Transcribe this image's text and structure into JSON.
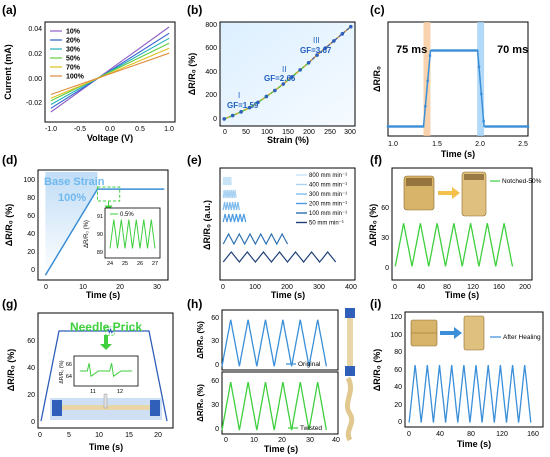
{
  "panels": {
    "a": {
      "letter": "(a)",
      "xlabel": "Voltage (V)",
      "ylabel": "Current (mA)",
      "xticks": [
        "-1.0",
        "-0.5",
        "0.0",
        "0.5",
        "1.0"
      ],
      "yticks": [
        "-0.02",
        "0.00",
        "0.02",
        "0.04"
      ]
    },
    "b": {
      "letter": "(b)",
      "xlabel": "Strain (%)",
      "ylabel": "ΔR/R₀ (%)",
      "xticks": [
        "0",
        "50",
        "100",
        "150",
        "200",
        "250",
        "300"
      ],
      "yticks": [
        "0",
        "200",
        "400",
        "600",
        "800"
      ],
      "annotations": [
        "GF=1.59",
        "GF=2.66",
        "GF=3.67",
        "I",
        "II",
        "III"
      ]
    },
    "c": {
      "letter": "(c)",
      "xlabel": "Time (s)",
      "ylabel": "ΔR/R₀",
      "xticks": [
        "1.0",
        "1.5",
        "2.0",
        "2.5"
      ],
      "annotations": [
        "75 ms",
        "70 ms"
      ]
    },
    "d": {
      "letter": "(d)",
      "xlabel": "Time (s)",
      "ylabel": "ΔR/R₀ (%)",
      "xticks": [
        "0",
        "10",
        "20",
        "30"
      ],
      "yticks": [
        "0",
        "20",
        "40",
        "60",
        "80",
        "100"
      ],
      "annotations": [
        "Base Strain",
        "100%"
      ],
      "inset": {
        "xticks": [
          "24",
          "25",
          "26",
          "27"
        ],
        "yticks": [
          "89",
          "90",
          "91"
        ],
        "ylabel": "ΔR/R₀ (%)",
        "legend": "0.5%"
      }
    },
    "e": {
      "letter": "(e)",
      "xlabel": "Time (s)",
      "ylabel": "ΔR/R₀ (a.u.)",
      "xticks": [
        "0",
        "100",
        "200",
        "300",
        "400"
      ],
      "legend": [
        "800 mm min⁻¹",
        "400 mm min⁻¹",
        "300 mm min⁻¹",
        "200 mm min⁻¹",
        "100 mm min⁻¹",
        "50 mm min⁻¹"
      ]
    },
    "f": {
      "letter": "(f)",
      "xlabel": "Time (s)",
      "ylabel": "ΔR/R₀ (%)",
      "xticks": [
        "0",
        "40",
        "80",
        "120",
        "160",
        "200"
      ],
      "yticks": [
        "0",
        "30",
        "60"
      ],
      "legend": "Notched-50%"
    },
    "g": {
      "letter": "(g)",
      "xlabel": "Time (s)",
      "ylabel": "ΔR/R₀ (%)",
      "xticks": [
        "0",
        "5",
        "10",
        "15",
        "20"
      ],
      "yticks": [
        "0",
        "20",
        "40",
        "60"
      ],
      "annotations": [
        "Needle Prick"
      ],
      "inset": {
        "xticks": [
          "11",
          "12"
        ],
        "yticks": [
          "64",
          "66"
        ],
        "ylabel": "ΔR/R₀ (%)"
      }
    },
    "h": {
      "letter": "(h)",
      "xlabel": "Time (s)",
      "top_ylabel": "ΔR/R₀ (%)",
      "bottom_ylabel": "ΔR/R₀ (%)",
      "xticks": [
        "0",
        "10",
        "20",
        "30",
        "40"
      ],
      "top_yticks": [
        "0",
        "30",
        "60"
      ],
      "bottom_yticks": [
        "0",
        "30",
        "60"
      ],
      "legend_top": "Original",
      "legend_bottom": "Twisted"
    },
    "i": {
      "letter": "(i)",
      "xlabel": "Time (s)",
      "ylabel": "ΔR/R₀ (%)",
      "xticks": [
        "0",
        "40",
        "80",
        "120",
        "160"
      ],
      "yticks": [
        "0",
        "20",
        "40",
        "60",
        "80",
        "100",
        "120"
      ],
      "legend": "After Healing"
    }
  },
  "colors": {
    "blue": "#3a8fd8",
    "green": "#3fcf3f",
    "darkblue": "#1f3f7a"
  },
  "chart_data": [
    {
      "panel": "a",
      "type": "line",
      "xlim": [
        -1.1,
        1.1
      ],
      "ylim": [
        -0.035,
        0.045
      ],
      "series": [
        {
          "name": "10%",
          "color": "#8e5fc7",
          "x": [
            -1,
            1
          ],
          "y": [
            -0.027,
            0.041
          ]
        },
        {
          "name": "20%",
          "color": "#2f5fcf",
          "x": [
            -1,
            1
          ],
          "y": [
            -0.024,
            0.036
          ]
        },
        {
          "name": "30%",
          "color": "#1fb0b8",
          "x": [
            -1,
            1
          ],
          "y": [
            -0.021,
            0.032
          ]
        },
        {
          "name": "50%",
          "color": "#5fcf3f",
          "x": [
            -1,
            1
          ],
          "y": [
            -0.018,
            0.028
          ]
        },
        {
          "name": "70%",
          "color": "#e0c020",
          "x": [
            -1,
            1
          ],
          "y": [
            -0.016,
            0.024
          ]
        },
        {
          "name": "100%",
          "color": "#e08a3a",
          "x": [
            -1,
            1
          ],
          "y": [
            -0.013,
            0.02
          ]
        }
      ]
    },
    {
      "panel": "b",
      "type": "line",
      "xlim": [
        -10,
        310
      ],
      "ylim": [
        -60,
        820
      ],
      "series": [
        {
          "name": "",
          "x": [
            0,
            20,
            40,
            60,
            80,
            100,
            120,
            140,
            160,
            180,
            200,
            220,
            240,
            260,
            280,
            300
          ],
          "y": [
            0,
            28,
            60,
            95,
            140,
            190,
            240,
            295,
            355,
            415,
            475,
            540,
            600,
            660,
            720,
            780
          ]
        }
      ]
    },
    {
      "panel": "c",
      "type": "line",
      "xlim": [
        1.0,
        2.5
      ],
      "ylim": [
        -0.05,
        0.55
      ],
      "series": [
        {
          "name": "",
          "x": [
            1.0,
            1.38,
            1.455,
            1.6,
            1.8,
            1.96,
            2.03,
            2.5
          ],
          "y": [
            0,
            0,
            0.4,
            0.4,
            0.4,
            0.4,
            0,
            0
          ]
        }
      ]
    },
    {
      "panel": "d",
      "type": "line",
      "xlim": [
        -2,
        33
      ],
      "ylim": [
        -5,
        110
      ],
      "series": [
        {
          "name": "",
          "x": [
            0,
            14,
            15,
            32
          ],
          "y": [
            0,
            90,
            90,
            90
          ]
        }
      ],
      "inset_series": [
        {
          "name": "0.5%",
          "x": [
            24,
            24.25,
            24.5,
            24.75,
            25,
            25.25,
            25.5,
            25.75,
            26,
            26.25,
            26.5,
            26.75,
            27
          ],
          "y": [
            89.2,
            90.8,
            89.2,
            90.8,
            89.2,
            90.8,
            89.2,
            90.8,
            89.2,
            90.8,
            89.2,
            90.8,
            89.2
          ]
        }
      ]
    },
    {
      "panel": "e",
      "type": "line",
      "xlim": [
        -10,
        410
      ],
      "series": [
        {
          "name": "800 mm min⁻¹",
          "periods": 10,
          "xmax": 25
        },
        {
          "name": "400 mm min⁻¹",
          "periods": 7,
          "xmax": 40
        },
        {
          "name": "300 mm min⁻¹",
          "periods": 6,
          "xmax": 50
        },
        {
          "name": "200 mm min⁻¹",
          "periods": 6,
          "xmax": 70
        },
        {
          "name": "100 mm min⁻¹",
          "periods": 6,
          "xmax": 200
        },
        {
          "name": "50 mm min⁻¹",
          "periods": 7,
          "xmax": 350
        }
      ]
    },
    {
      "panel": "f",
      "type": "line",
      "xlim": [
        -5,
        210
      ],
      "ylim": [
        -5,
        85
      ],
      "series": [
        {
          "name": "Notched-50%",
          "periods": 7,
          "xmax": 180,
          "min": 12,
          "max": 66
        }
      ]
    },
    {
      "panel": "g",
      "type": "line",
      "xlim": [
        -0.5,
        22
      ],
      "ylim": [
        -5,
        78
      ],
      "series": [
        {
          "name": "",
          "x": [
            0,
            3,
            11,
            11.2,
            11.4,
            11.6,
            11.8,
            12,
            18,
            21
          ],
          "y": [
            0,
            65,
            65,
            66,
            64,
            66,
            64,
            65,
            65,
            0
          ]
        }
      ]
    },
    {
      "panel": "h",
      "type": "line",
      "xlim": [
        0,
        40
      ],
      "ylim": [
        -5,
        75
      ],
      "series": [
        {
          "name": "Original",
          "periods": 6,
          "xmax": 36,
          "min": 0,
          "max": 62
        },
        {
          "name": "Twisted",
          "periods": 6,
          "xmax": 36,
          "min": 0,
          "max": 62
        }
      ]
    },
    {
      "panel": "i",
      "type": "line",
      "xlim": [
        -5,
        165
      ],
      "ylim": [
        -5,
        125
      ],
      "series": [
        {
          "name": "After Healing",
          "periods": 10,
          "xmax": 150,
          "min": 0,
          "max": 65
        }
      ]
    }
  ]
}
